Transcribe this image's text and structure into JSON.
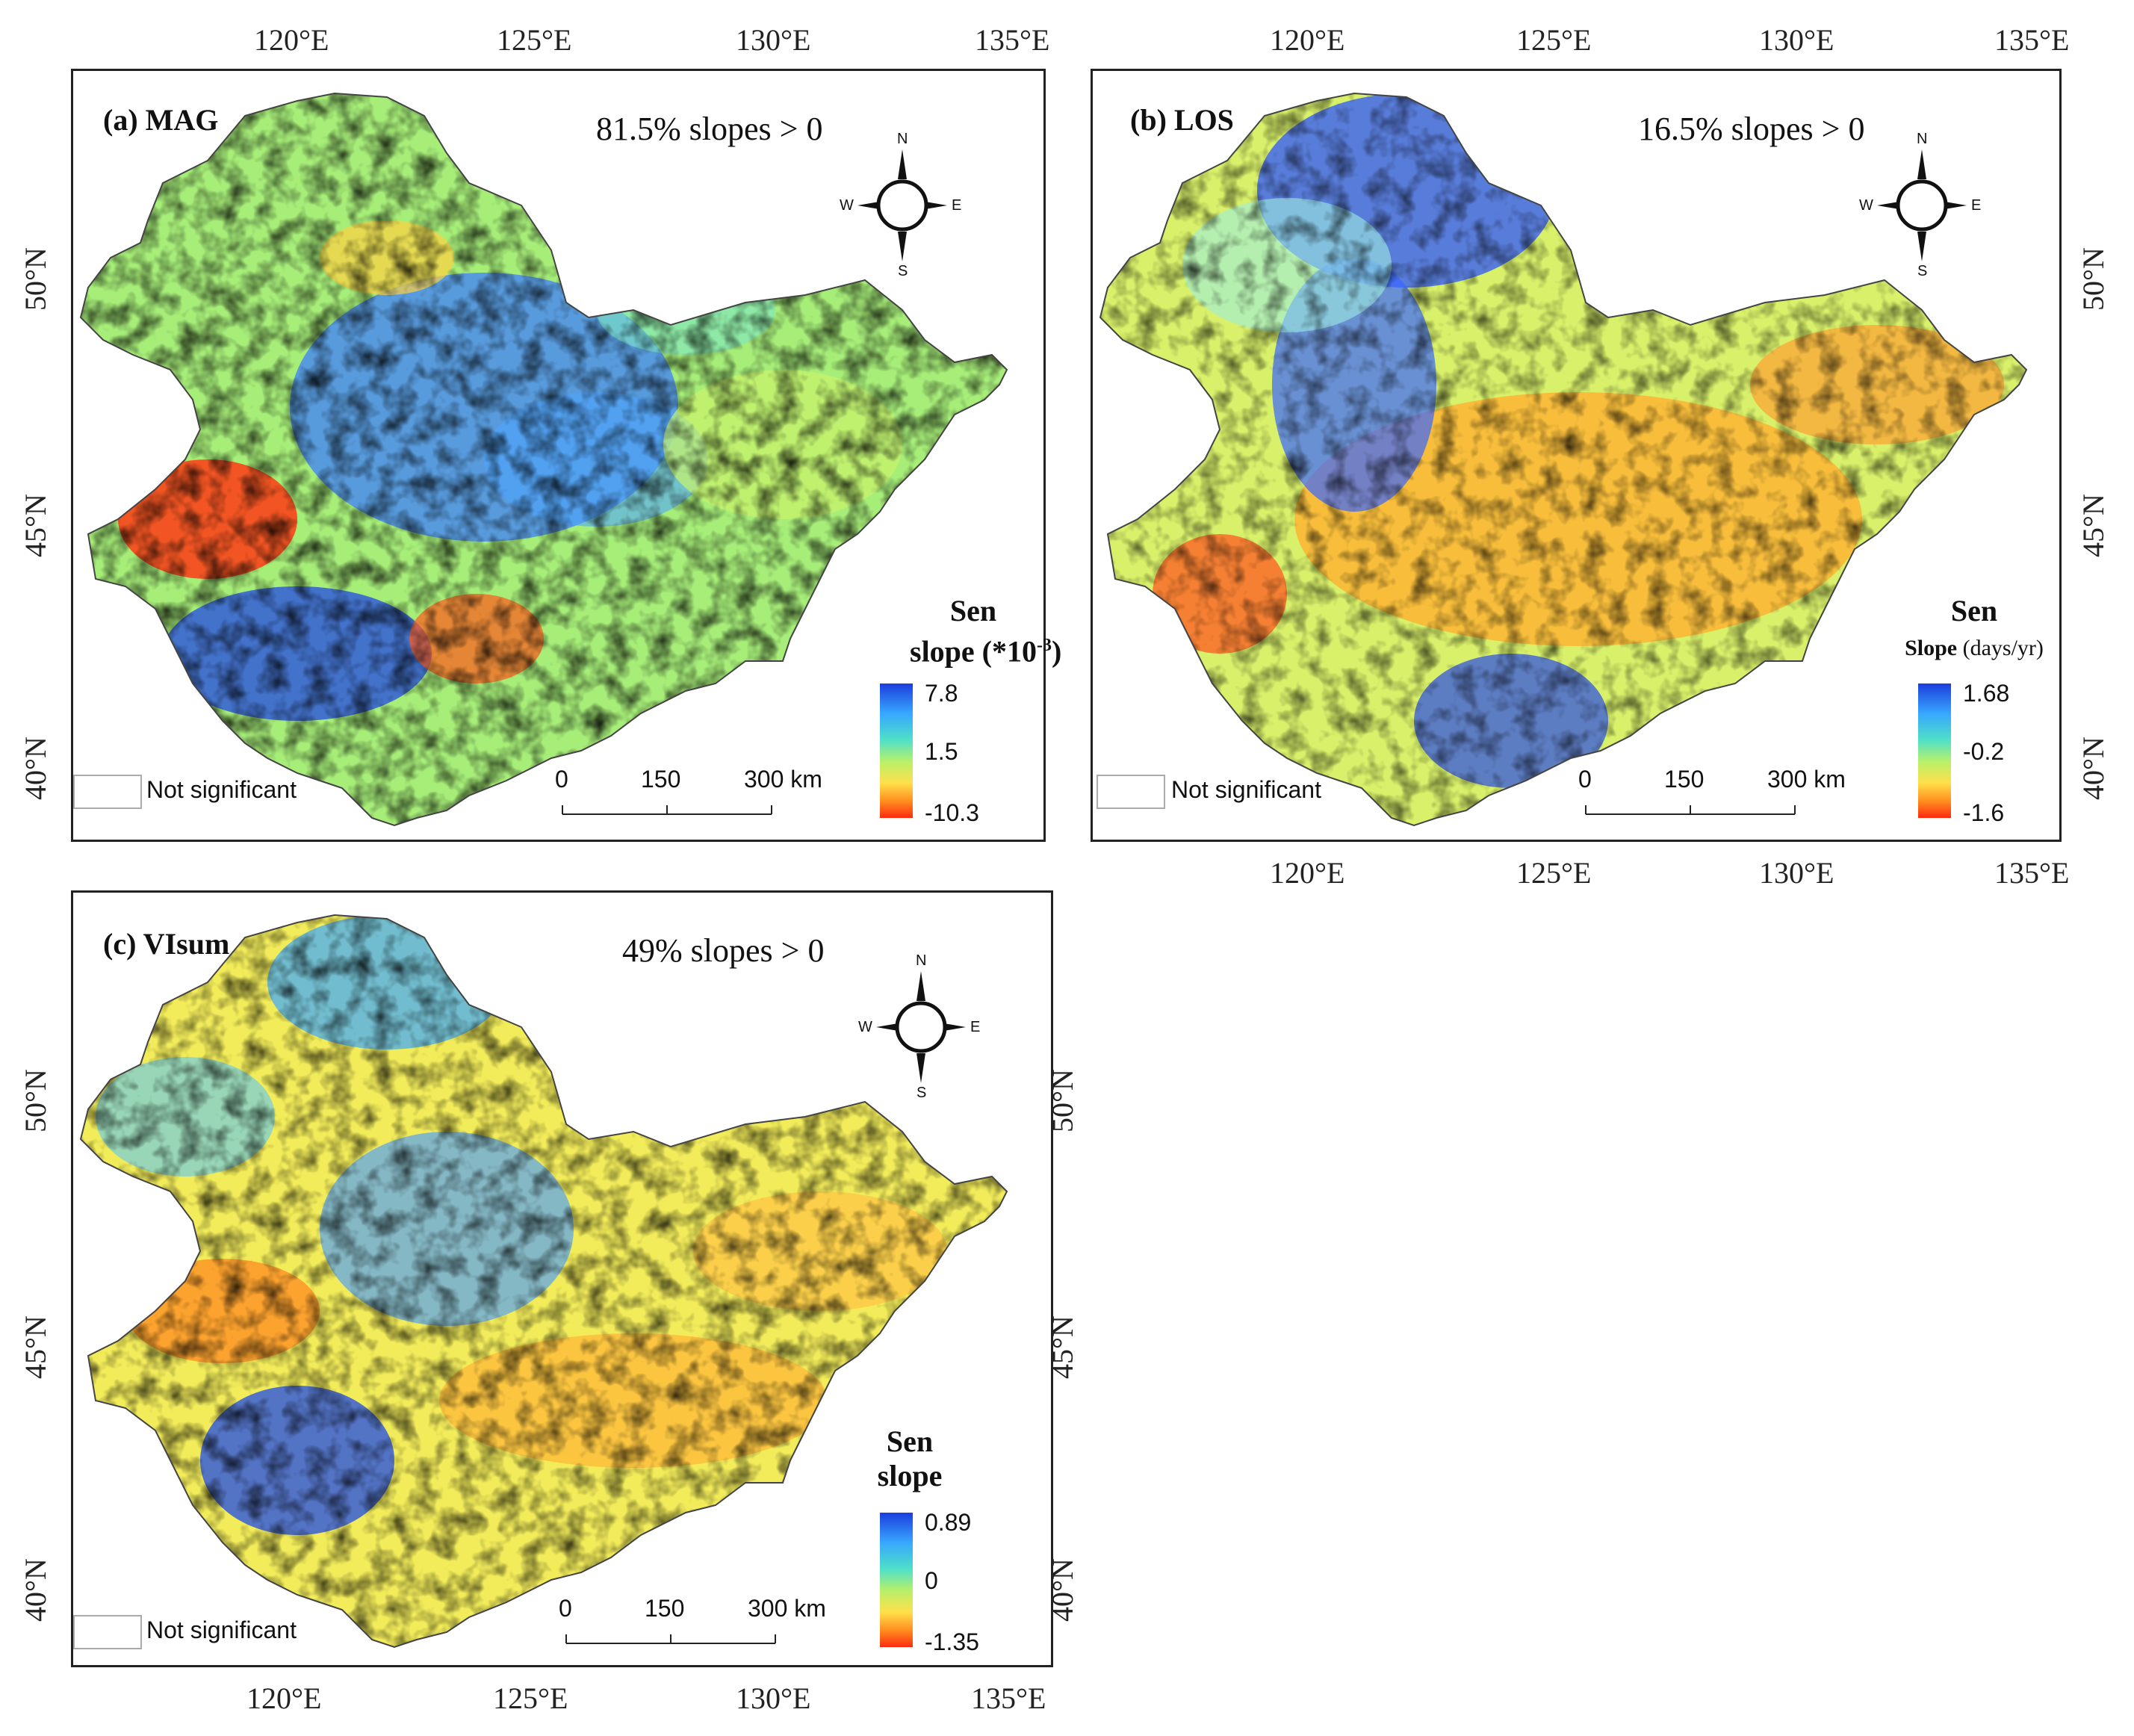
{
  "panels": [
    {
      "id": "a",
      "title": "(a)  MAG",
      "pct": "81.5% slopes > 0",
      "legend_title_line1": "Sen",
      "legend_title_line2": "slope (*10",
      "legend_title_sup": "-3",
      "legend_title_line2_end": ")",
      "legend_max": "7.8",
      "legend_mid": "1.5",
      "legend_min": "-10.3",
      "blue_fraction": 0.35
    },
    {
      "id": "b",
      "title": "(b)  LOS",
      "pct": "16.5% slopes > 0",
      "legend_title_line1": "Sen",
      "legend_title_line2_bold": "Slope",
      "legend_title_line2_normal": " (days/yr)",
      "legend_max": "1.68",
      "legend_mid": "-0.2",
      "legend_min": "-1.6",
      "blue_fraction": 0.2
    },
    {
      "id": "c",
      "title": "(c)  VIsum",
      "pct": "49% slopes > 0",
      "legend_title_line1": "Sen",
      "legend_title_line2": "slope",
      "legend_max": "0.89",
      "legend_mid": "0",
      "legend_min": "-1.35",
      "blue_fraction": 0.3
    }
  ],
  "axes": {
    "lon_ticks": [
      "120°E",
      "125°E",
      "130°E",
      "135°E"
    ],
    "lat_ticks": [
      "50°N",
      "45°N",
      "40°N"
    ]
  },
  "common": {
    "not_significant": "Not significant",
    "scalebar": [
      "0",
      "150",
      "300 km"
    ],
    "compass": {
      "n": "N",
      "s": "S",
      "e": "E",
      "w": "W"
    }
  },
  "colors": {
    "ramp": [
      "#1b3ddb",
      "#37a6ff",
      "#4fe0c8",
      "#b8f06a",
      "#ffe04a",
      "#ff8a1e",
      "#ff2a10"
    ]
  }
}
